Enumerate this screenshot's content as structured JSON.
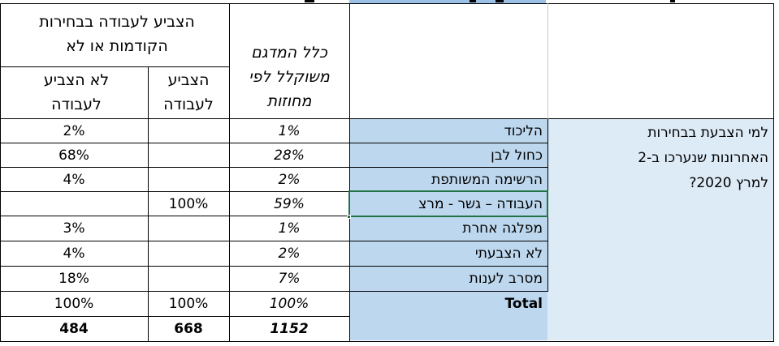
{
  "headers": {
    "group": {
      "line1": "הצביע לעבודה בבחירות",
      "line2": "הקודמות או לא"
    },
    "did_not_vote": {
      "line1": "לא הצביע",
      "line2": "לעבודה"
    },
    "voted": {
      "line1": "הצביע",
      "line2": "לעבודה"
    },
    "total": {
      "line1": "כלל המדגם",
      "line2": "משוקלל לפי",
      "line3": "מחוזות"
    }
  },
  "question": {
    "line1": "למי הצבעת בבחירות",
    "line2": "האחרונות שנערכו ב-2",
    "line3": "למרץ 2020?"
  },
  "rows": [
    {
      "label": "הליכוד",
      "did_not_vote": "2%",
      "voted": "",
      "total": "1%"
    },
    {
      "label": "כחול לבן",
      "did_not_vote": "68%",
      "voted": "",
      "total": "28%"
    },
    {
      "label": "הרשימה המשותפת",
      "did_not_vote": "4%",
      "voted": "",
      "total": "2%"
    },
    {
      "label": "העבודה – גשר - מרצ",
      "did_not_vote": "",
      "voted": "100%",
      "total": "59%"
    },
    {
      "label": "מפלגה אחרת",
      "did_not_vote": "3%",
      "voted": "",
      "total": "1%"
    },
    {
      "label": "לא הצבעתי",
      "did_not_vote": "4%",
      "voted": "",
      "total": "2%"
    },
    {
      "label": "מסרב לענות",
      "did_not_vote": "18%",
      "voted": "",
      "total": "7%"
    },
    {
      "label": "Total",
      "did_not_vote": "100%",
      "voted": "100%",
      "total": "100%"
    },
    {
      "label": "",
      "did_not_vote": "484",
      "voted": "668",
      "total": "1152"
    }
  ],
  "colors": {
    "question_fill": "#ddebf7",
    "label_fill": "#bdd7ee",
    "selection_border": "#217346",
    "title_fill": "#9bc2e6"
  }
}
